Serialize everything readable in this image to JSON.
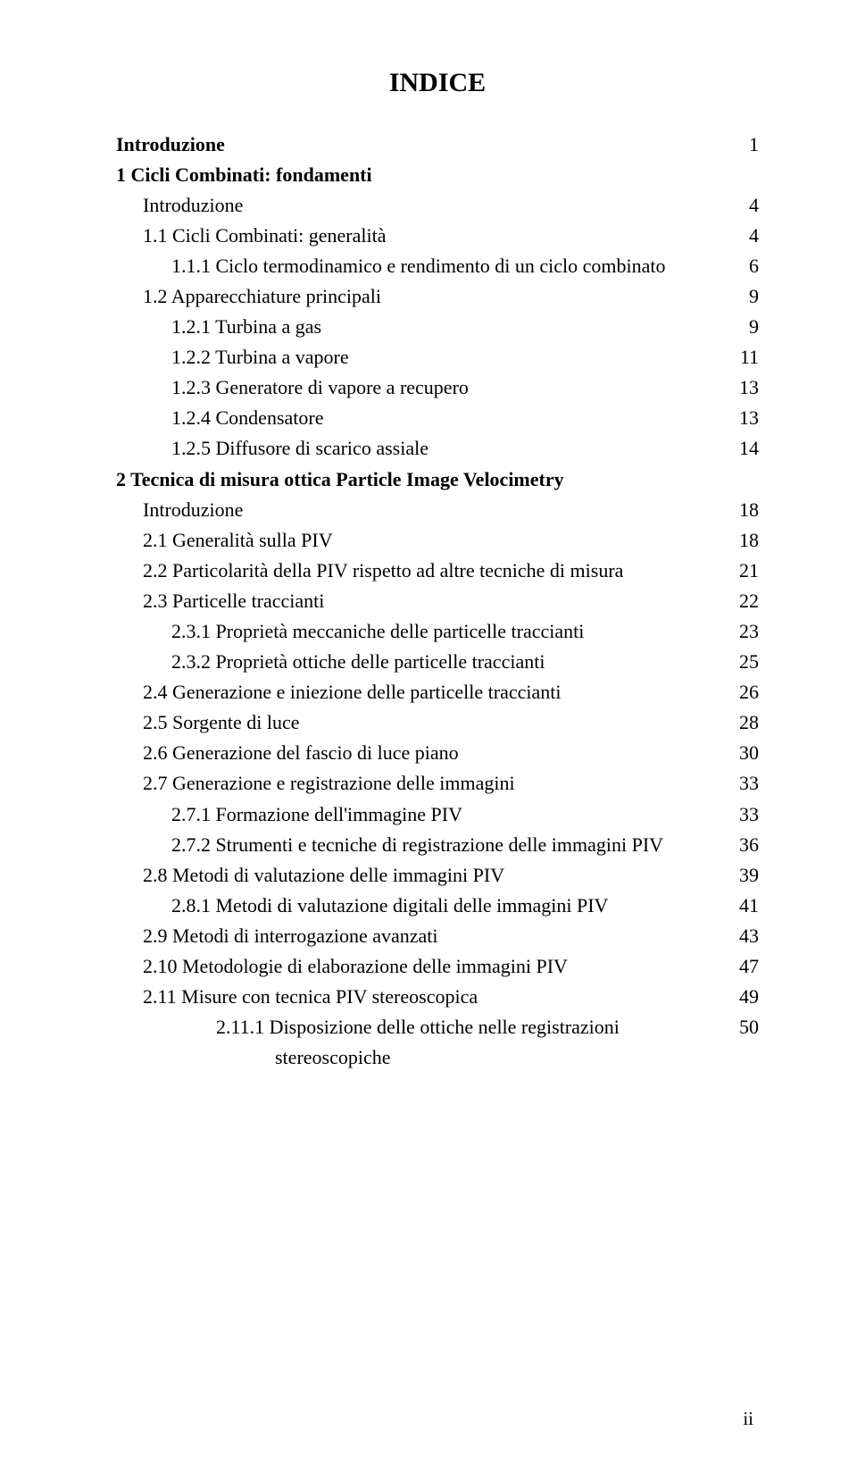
{
  "title": "INDICE",
  "entries": [
    {
      "text": "Introduzione",
      "page": "1",
      "bold": true,
      "cls": "indent-0"
    },
    {
      "text": "1 Cicli Combinati: fondamenti",
      "page": "",
      "bold": true,
      "cls": "indent-0"
    },
    {
      "text": "Introduzione",
      "page": "4",
      "bold": false,
      "cls": "indent-1"
    },
    {
      "text": "1.1  Cicli Combinati: generalità",
      "page": "4",
      "bold": false,
      "cls": "indent-1"
    },
    {
      "text": "1.1.1 Ciclo termodinamico e rendimento di un ciclo combinato",
      "page": "6",
      "bold": false,
      "cls": "hang-2b"
    },
    {
      "text": "1.2  Apparecchiature principali",
      "page": "9",
      "bold": false,
      "cls": "indent-1"
    },
    {
      "text": "1.2.1 Turbina a gas",
      "page": "9",
      "bold": false,
      "cls": "indent-2"
    },
    {
      "text": "1.2.2 Turbina a vapore",
      "page": "11",
      "bold": false,
      "cls": "indent-2"
    },
    {
      "text": "1.2.3 Generatore di vapore a recupero",
      "page": "13",
      "bold": false,
      "cls": "indent-2"
    },
    {
      "text": "1.2.4 Condensatore",
      "page": "13",
      "bold": false,
      "cls": "indent-2"
    },
    {
      "text": "1.2.5 Diffusore di scarico assiale",
      "page": "14",
      "bold": false,
      "cls": "indent-2"
    },
    {
      "text": "2 Tecnica di misura ottica Particle Image Velocimetry",
      "page": "",
      "bold": true,
      "cls": "indent-0"
    },
    {
      "text": "Introduzione",
      "page": "18",
      "bold": false,
      "cls": "indent-1"
    },
    {
      "text": "2.1  Generalità sulla PIV",
      "page": "18",
      "bold": false,
      "cls": "indent-1"
    },
    {
      "text": "2.2  Particolarità della PIV rispetto ad altre tecniche di misura",
      "page": "21",
      "bold": false,
      "cls": "hang-1"
    },
    {
      "text": "2.3  Particelle traccianti",
      "page": "22",
      "bold": false,
      "cls": "indent-1"
    },
    {
      "text": "2.3.1 Proprietà meccaniche delle particelle traccianti",
      "page": "23",
      "bold": false,
      "cls": "indent-2"
    },
    {
      "text": "2.3.2 Proprietà ottiche delle particelle traccianti",
      "page": "25",
      "bold": false,
      "cls": "indent-2"
    },
    {
      "text": "2.4  Generazione e iniezione delle particelle traccianti",
      "page": "26",
      "bold": false,
      "cls": "indent-1"
    },
    {
      "text": "2.5  Sorgente di luce",
      "page": "28",
      "bold": false,
      "cls": "indent-1"
    },
    {
      "text": "2.6  Generazione del fascio di luce piano",
      "page": "30",
      "bold": false,
      "cls": "indent-1"
    },
    {
      "text": "2.7  Generazione e registrazione delle immagini",
      "page": "33",
      "bold": false,
      "cls": "indent-1"
    },
    {
      "text": "2.7.1 Formazione dell'immagine PIV",
      "page": "33",
      "bold": false,
      "cls": "indent-2"
    },
    {
      "text": "2.7.2 Strumenti e tecniche di registrazione delle immagini PIV",
      "page": "36",
      "bold": false,
      "cls": "hang-2"
    },
    {
      "text": "2.8  Metodi di valutazione delle immagini PIV",
      "page": "39",
      "bold": false,
      "cls": "indent-1"
    },
    {
      "text": "2.8.1 Metodi di valutazione digitali delle immagini PIV",
      "page": "41",
      "bold": false,
      "cls": "hang-2"
    },
    {
      "text": "2.9  Metodi di interrogazione avanzati",
      "page": "43",
      "bold": false,
      "cls": "indent-1"
    },
    {
      "text": "2.10 Metodologie di elaborazione delle immagini PIV",
      "page": "47",
      "bold": false,
      "cls": "indent-1"
    },
    {
      "text": "2.11 Misure con tecnica PIV stereoscopica",
      "page": "49",
      "bold": false,
      "cls": "indent-1"
    },
    {
      "text": "2.11.1 Disposizione delle ottiche nelle registrazioni stereoscopiche",
      "page": "50",
      "bold": false,
      "cls": "hang-3"
    }
  ],
  "folio": "ii"
}
